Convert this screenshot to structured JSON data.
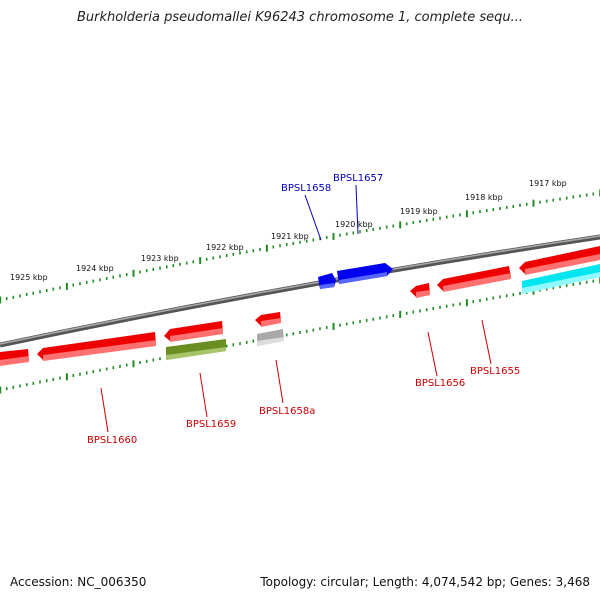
{
  "title": "Burkholderia pseudomallei K96243 chromosome 1, complete sequ...",
  "footer": {
    "accession": "Accession: NC_006350",
    "summary": "Topology: circular; Length: 4,074,542 bp; Genes: 3,468"
  },
  "ruler": {
    "labels": [
      "1925 kbp",
      "1924 kbp",
      "1923 kbp",
      "1922 kbp",
      "1921 kbp",
      "1920 kbp",
      "1919 kbp",
      "1918 kbp",
      "1917 kbp"
    ]
  },
  "colors": {
    "backbone": "#808080",
    "ticks": "#228B22",
    "gene_forward": "#0000ee",
    "gene_reverse": "#ee0000",
    "gene_olive": "#6b8e23",
    "gene_gray": "#c0c0c0",
    "gene_cyan": "#00ffff",
    "label_forward": "#0000bb",
    "label_reverse": "#cc0000"
  },
  "genes": [
    {
      "id": "BPSL1658",
      "label": "BPSL1658",
      "strand": "forward",
      "color": "gene_forward"
    },
    {
      "id": "BPSL1657",
      "label": "BPSL1657",
      "strand": "forward",
      "color": "gene_forward"
    },
    {
      "id": "BPSL1656",
      "label": "BPSL1656",
      "strand": "reverse",
      "color": "gene_reverse"
    },
    {
      "id": "BPSL1655",
      "label": "BPSL1655",
      "strand": "reverse",
      "color": "gene_reverse"
    },
    {
      "id": "BPSL1658a",
      "label": "BPSL1658a",
      "strand": "reverse",
      "color": "gene_reverse"
    },
    {
      "id": "BPSL1659",
      "label": "BPSL1659",
      "strand": "reverse",
      "color": "gene_reverse"
    },
    {
      "id": "BPSL1660",
      "label": "BPSL1660",
      "strand": "reverse",
      "color": "gene_reverse"
    }
  ]
}
